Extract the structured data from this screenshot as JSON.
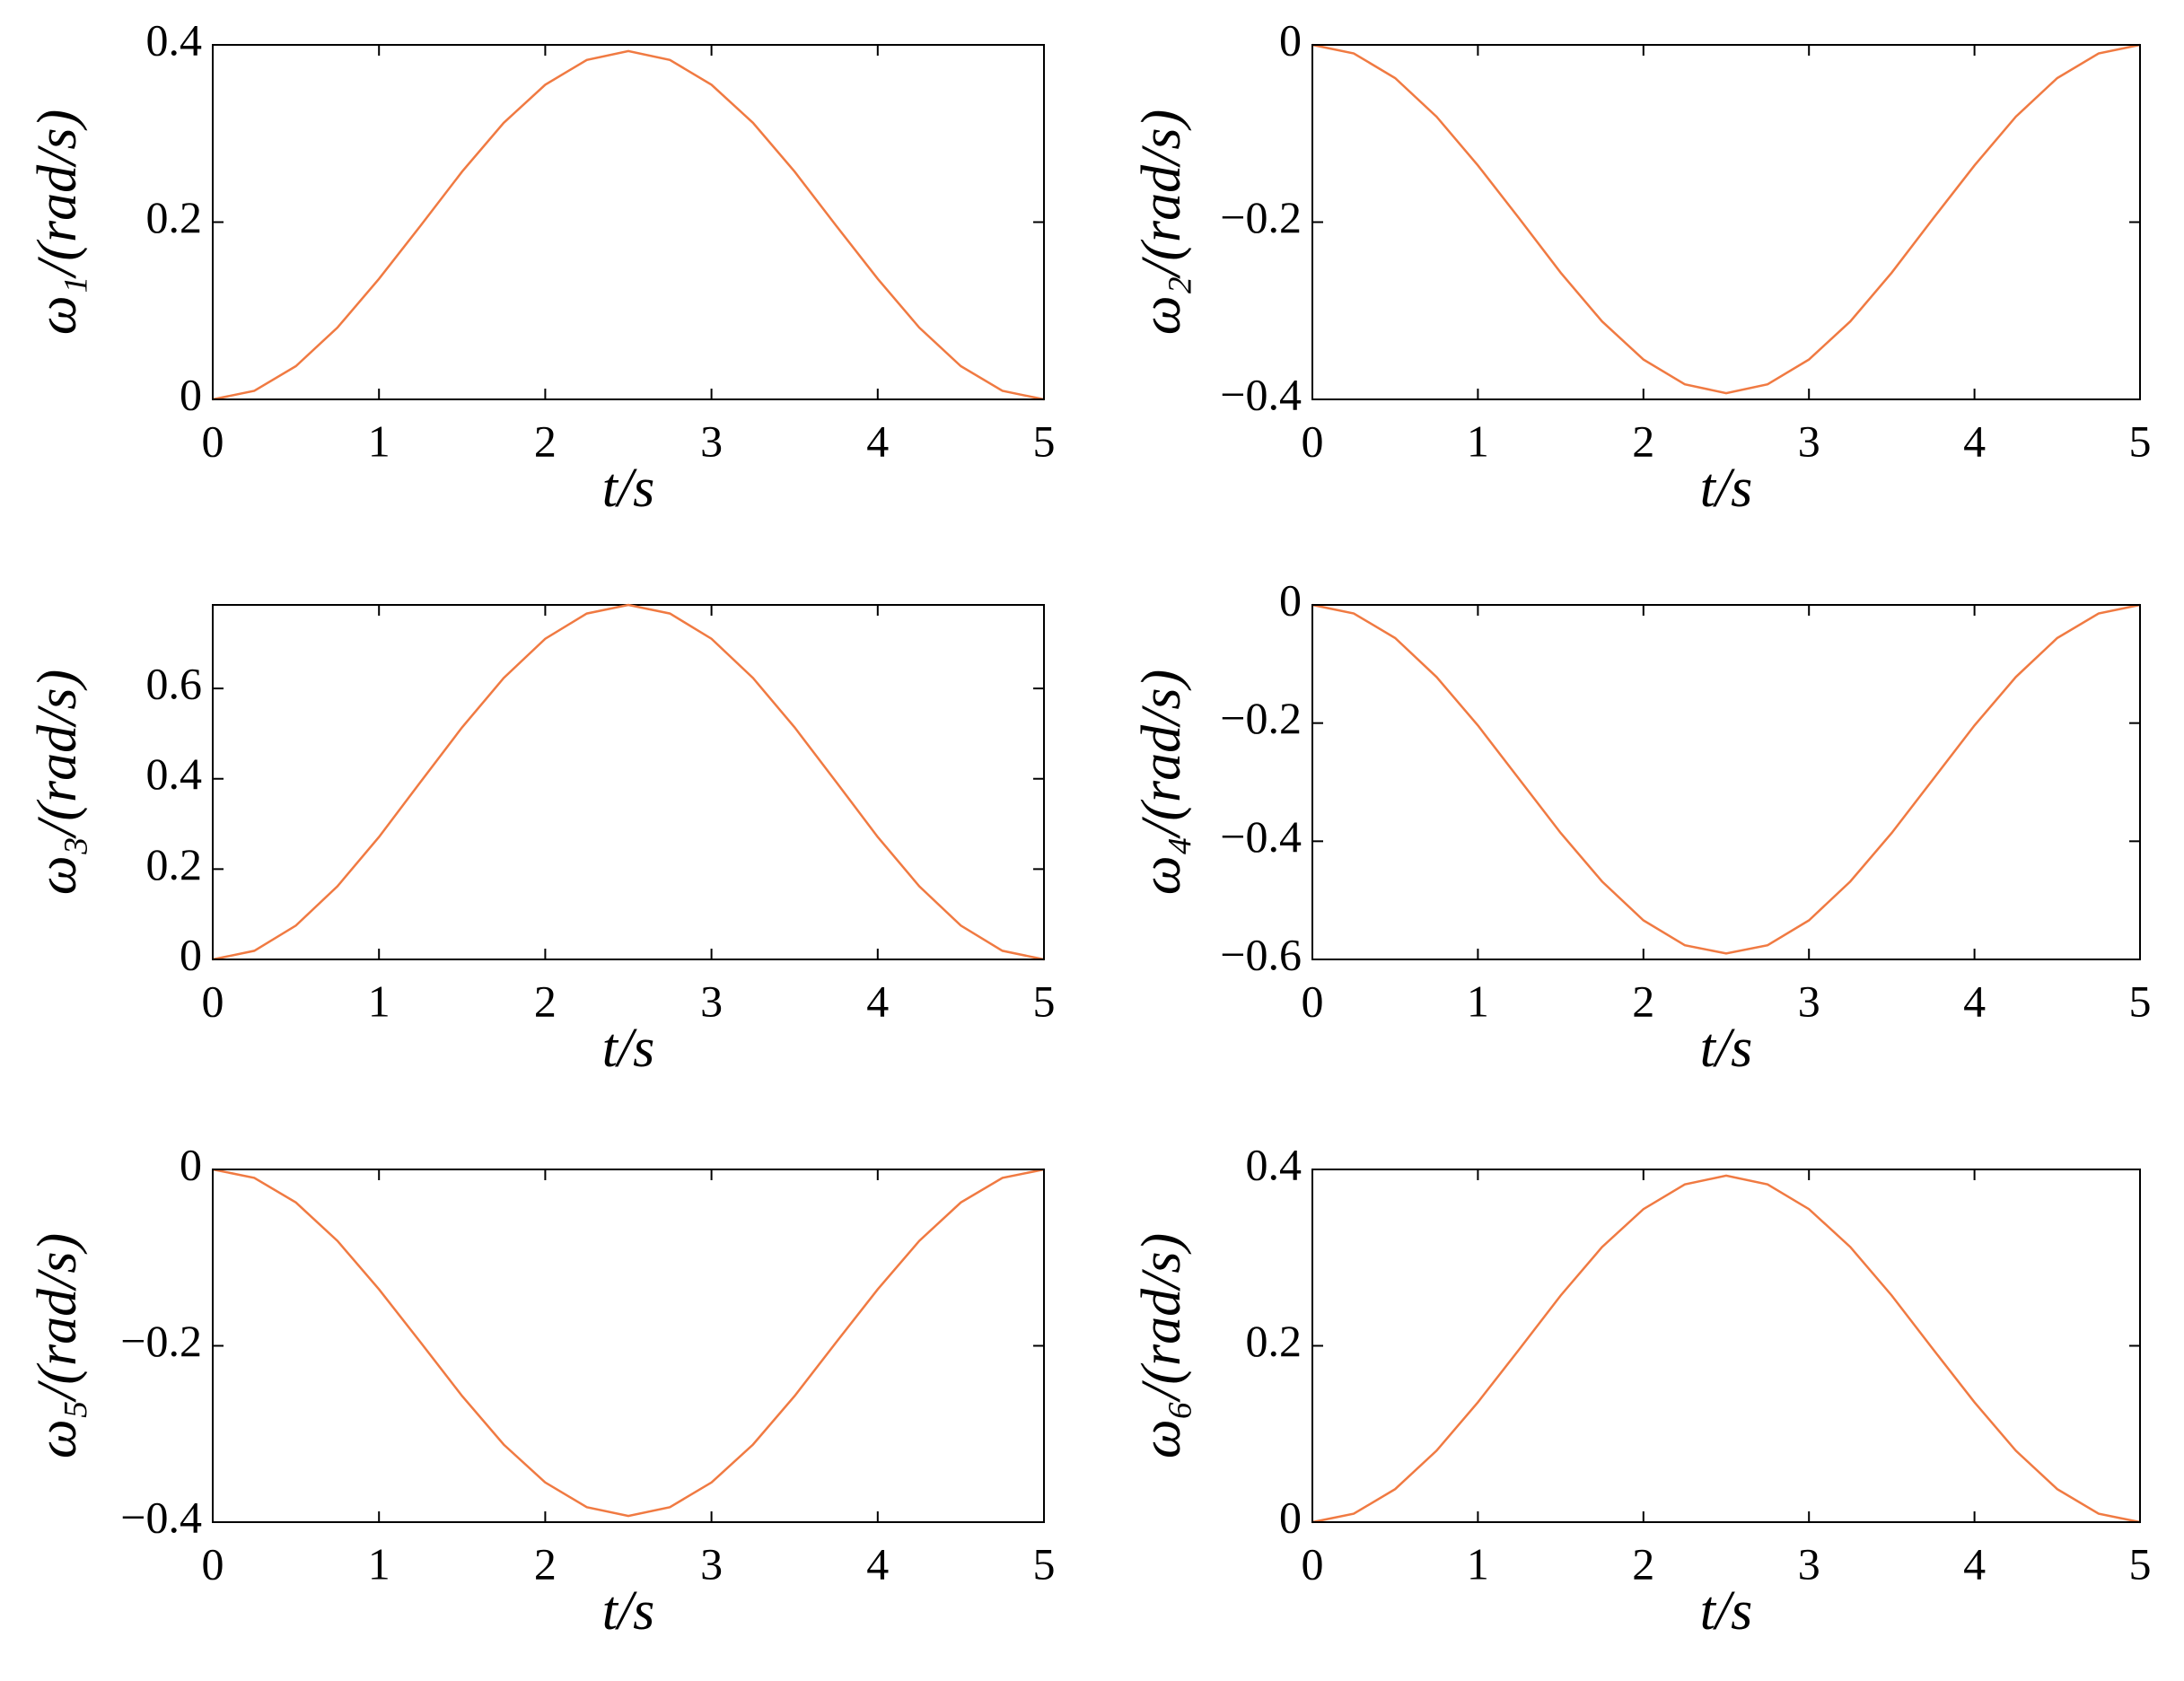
{
  "chart_data": [
    {
      "type": "line",
      "ylabel": "ω₁/(rad/s)",
      "xlabel": "t/s",
      "color": "#f07a42",
      "x": [
        0,
        0.25,
        0.5,
        0.75,
        1,
        1.25,
        1.5,
        1.75,
        2,
        2.25,
        2.5,
        2.75,
        3,
        3.25,
        3.5,
        3.75,
        4,
        4.25,
        4.5,
        4.75,
        5
      ],
      "values": [
        0,
        0.0096,
        0.0375,
        0.081,
        0.136,
        0.196,
        0.257,
        0.312,
        0.355,
        0.383,
        0.393,
        0.383,
        0.355,
        0.312,
        0.257,
        0.196,
        0.136,
        0.081,
        0.0375,
        0.0096,
        0
      ],
      "xlim": [
        0,
        5
      ],
      "xticks": [
        0,
        1,
        2,
        3,
        4,
        5
      ],
      "ylim": [
        0,
        0.4
      ],
      "yticks": [
        0,
        0.2,
        0.4
      ]
    },
    {
      "type": "line",
      "ylabel": "ω₂/(rad/s)",
      "xlabel": "t/s",
      "color": "#f07a42",
      "x": [
        0,
        0.25,
        0.5,
        0.75,
        1,
        1.25,
        1.5,
        1.75,
        2,
        2.25,
        2.5,
        2.75,
        3,
        3.25,
        3.5,
        3.75,
        4,
        4.25,
        4.5,
        4.75,
        5
      ],
      "values": [
        0,
        -0.0096,
        -0.0375,
        -0.081,
        -0.136,
        -0.196,
        -0.257,
        -0.312,
        -0.355,
        -0.383,
        -0.393,
        -0.383,
        -0.355,
        -0.312,
        -0.257,
        -0.196,
        -0.136,
        -0.081,
        -0.0375,
        -0.0096,
        0
      ],
      "xlim": [
        0,
        5
      ],
      "xticks": [
        0,
        1,
        2,
        3,
        4,
        5
      ],
      "ylim": [
        -0.4,
        0
      ],
      "yticks": [
        {
          "value": -0.4,
          "label": "−0.4"
        },
        {
          "value": -0.2,
          "label": "−0.2"
        },
        0
      ]
    },
    {
      "type": "line",
      "ylabel": "ω₃/(rad/s)",
      "xlabel": "t/s",
      "color": "#f07a42",
      "x": [
        0,
        0.25,
        0.5,
        0.75,
        1,
        1.25,
        1.5,
        1.75,
        2,
        2.25,
        2.5,
        2.75,
        3,
        3.25,
        3.5,
        3.75,
        4,
        4.25,
        4.5,
        4.75,
        5
      ],
      "values": [
        0,
        0.019,
        0.075,
        0.162,
        0.271,
        0.393,
        0.514,
        0.623,
        0.71,
        0.766,
        0.785,
        0.766,
        0.71,
        0.623,
        0.514,
        0.393,
        0.271,
        0.162,
        0.075,
        0.019,
        0
      ],
      "xlim": [
        0,
        5
      ],
      "xticks": [
        0,
        1,
        2,
        3,
        4,
        5
      ],
      "ylim": [
        0,
        0.785
      ],
      "yticks": [
        0,
        0.2,
        0.4,
        0.6
      ]
    },
    {
      "type": "line",
      "ylabel": "ω₄/(rad/s)",
      "xlabel": "t/s",
      "color": "#f07a42",
      "x": [
        0,
        0.25,
        0.5,
        0.75,
        1,
        1.25,
        1.5,
        1.75,
        2,
        2.25,
        2.5,
        2.75,
        3,
        3.25,
        3.5,
        3.75,
        4,
        4.25,
        4.5,
        4.75,
        5
      ],
      "values": [
        0,
        -0.0145,
        -0.056,
        -0.122,
        -0.204,
        -0.295,
        -0.386,
        -0.468,
        -0.534,
        -0.576,
        -0.59,
        -0.576,
        -0.534,
        -0.468,
        -0.386,
        -0.295,
        -0.204,
        -0.122,
        -0.056,
        -0.0145,
        0
      ],
      "xlim": [
        0,
        5
      ],
      "xticks": [
        0,
        1,
        2,
        3,
        4,
        5
      ],
      "ylim": [
        -0.6,
        0
      ],
      "yticks": [
        {
          "value": -0.6,
          "label": "−0.6"
        },
        {
          "value": -0.4,
          "label": "−0.4"
        },
        {
          "value": -0.2,
          "label": "−0.2"
        },
        0
      ]
    },
    {
      "type": "line",
      "ylabel": "ω₅/(rad/s)",
      "xlabel": "t/s",
      "color": "#f07a42",
      "x": [
        0,
        0.25,
        0.5,
        0.75,
        1,
        1.25,
        1.5,
        1.75,
        2,
        2.25,
        2.5,
        2.75,
        3,
        3.25,
        3.5,
        3.75,
        4,
        4.25,
        4.5,
        4.75,
        5
      ],
      "values": [
        0,
        -0.0096,
        -0.0375,
        -0.081,
        -0.136,
        -0.196,
        -0.257,
        -0.312,
        -0.355,
        -0.383,
        -0.393,
        -0.383,
        -0.355,
        -0.312,
        -0.257,
        -0.196,
        -0.136,
        -0.081,
        -0.0375,
        -0.0096,
        0
      ],
      "xlim": [
        0,
        5
      ],
      "xticks": [
        0,
        1,
        2,
        3,
        4,
        5
      ],
      "ylim": [
        -0.4,
        0
      ],
      "yticks": [
        {
          "value": -0.4,
          "label": "−0.4"
        },
        {
          "value": -0.2,
          "label": "−0.2"
        },
        0
      ]
    },
    {
      "type": "line",
      "ylabel": "ω₆/(rad/s)",
      "xlabel": "t/s",
      "color": "#f07a42",
      "x": [
        0,
        0.25,
        0.5,
        0.75,
        1,
        1.25,
        1.5,
        1.75,
        2,
        2.25,
        2.5,
        2.75,
        3,
        3.25,
        3.5,
        3.75,
        4,
        4.25,
        4.5,
        4.75,
        5
      ],
      "values": [
        0,
        0.0096,
        0.0375,
        0.081,
        0.136,
        0.196,
        0.257,
        0.312,
        0.355,
        0.383,
        0.393,
        0.383,
        0.355,
        0.312,
        0.257,
        0.196,
        0.136,
        0.081,
        0.0375,
        0.0096,
        0
      ],
      "xlim": [
        0,
        5
      ],
      "xticks": [
        0,
        1,
        2,
        3,
        4,
        5
      ],
      "ylim": [
        0,
        0.4
      ],
      "yticks": [
        0,
        0.2,
        0.4
      ]
    }
  ]
}
